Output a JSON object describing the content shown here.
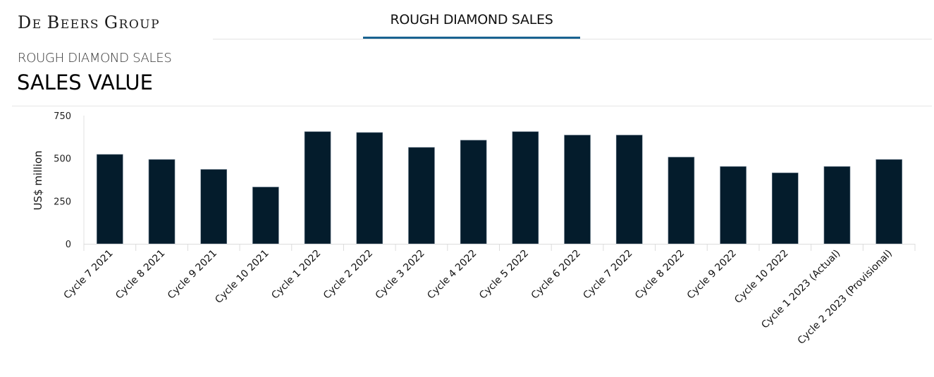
{
  "header": {
    "logo_text": "De Beers Group",
    "logo_parts": [
      "D",
      "E ",
      "B",
      "EERS ",
      "G",
      "ROUP"
    ],
    "tabs": [
      {
        "label": "ROUGH DIAMOND SALES",
        "active": true
      }
    ],
    "accent_color": "#1a6391"
  },
  "page": {
    "subtitle": "ROUGH DIAMOND SALES",
    "title": "SALES VALUE"
  },
  "chart_data": {
    "type": "bar",
    "title": "SALES VALUE",
    "xlabel": "",
    "ylabel": "US$ million",
    "ylim": [
      0,
      750
    ],
    "yticks": [
      0,
      250,
      500,
      750
    ],
    "grid": false,
    "legend": null,
    "bar_color": "#041c2c",
    "categories": [
      "Cycle 7 2021",
      "Cycle 8 2021",
      "Cycle 9 2021",
      "Cycle 10 2021",
      "Cycle 1 2022",
      "Cycle 2 2022",
      "Cycle 3 2022",
      "Cycle 4 2022",
      "Cycle 5 2022",
      "Cycle 6 2022",
      "Cycle 7 2022",
      "Cycle 8 2022",
      "Cycle 9 2022",
      "Cycle 10 2022",
      "Cycle 1 2023 (Actual)",
      "Cycle 2 2023 (Provisional)"
    ],
    "values": [
      523,
      493,
      435,
      332,
      656,
      651,
      564,
      606,
      656,
      636,
      636,
      507,
      452,
      415,
      452,
      493
    ]
  }
}
